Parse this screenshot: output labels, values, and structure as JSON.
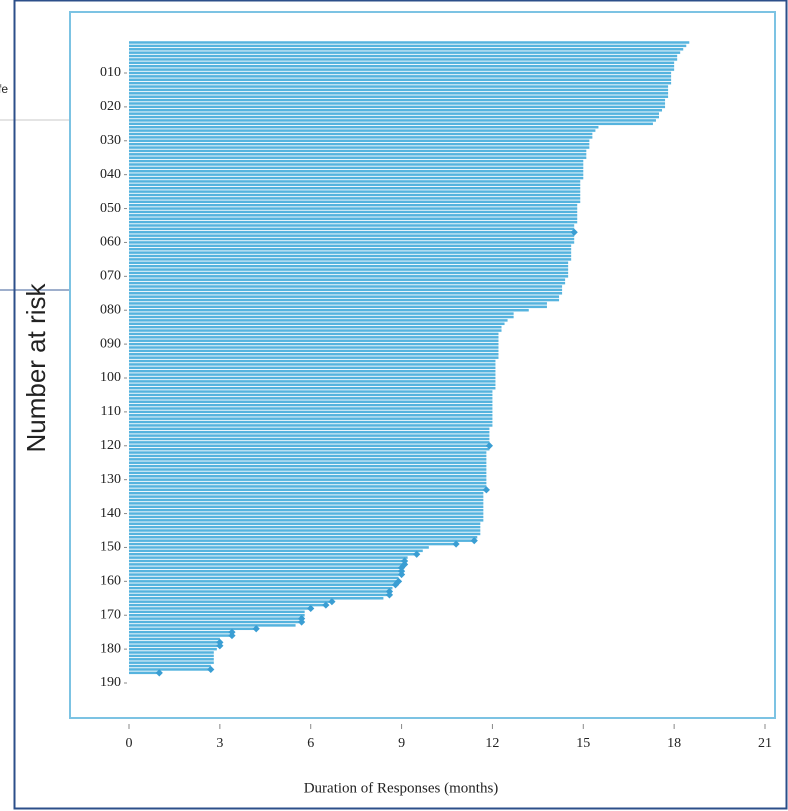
{
  "chart_data": {
    "type": "swimmer",
    "xlabel": "Duration of Responses (months)",
    "ylabel": "Number at risk",
    "side_fragment": "fe",
    "color": "#55b3de",
    "marker_color": "#3a9ed3",
    "xlim": [
      0,
      21
    ],
    "xticks": [
      0,
      3,
      6,
      9,
      12,
      15,
      18,
      21
    ],
    "ylim": [
      0,
      195
    ],
    "yticks": [
      {
        "value": 10,
        "label": "010"
      },
      {
        "value": 20,
        "label": "020"
      },
      {
        "value": 30,
        "label": "030"
      },
      {
        "value": 40,
        "label": "040"
      },
      {
        "value": 50,
        "label": "050"
      },
      {
        "value": 60,
        "label": "060"
      },
      {
        "value": 70,
        "label": "070"
      },
      {
        "value": 80,
        "label": "080"
      },
      {
        "value": 90,
        "label": "090"
      },
      {
        "value": 100,
        "label": "100"
      },
      {
        "value": 110,
        "label": "110"
      },
      {
        "value": 120,
        "label": "120"
      },
      {
        "value": 130,
        "label": "130"
      },
      {
        "value": 140,
        "label": "140"
      },
      {
        "value": 150,
        "label": "150"
      },
      {
        "value": 160,
        "label": "160"
      },
      {
        "value": 170,
        "label": "170"
      },
      {
        "value": 180,
        "label": "180"
      },
      {
        "value": 190,
        "label": "190"
      }
    ],
    "values": [
      18.5,
      18.4,
      18.3,
      18.2,
      18.1,
      18.1,
      18.0,
      18.0,
      18.0,
      17.9,
      17.9,
      17.9,
      17.9,
      17.8,
      17.8,
      17.8,
      17.8,
      17.7,
      17.7,
      17.7,
      17.6,
      17.5,
      17.5,
      17.4,
      17.3,
      15.5,
      15.4,
      15.3,
      15.3,
      15.2,
      15.2,
      15.2,
      15.1,
      15.1,
      15.1,
      15.0,
      15.0,
      15.0,
      15.0,
      15.0,
      15.0,
      14.9,
      14.9,
      14.9,
      14.9,
      14.9,
      14.9,
      14.9,
      14.8,
      14.8,
      14.8,
      14.8,
      14.8,
      14.8,
      14.7,
      14.7,
      14.7,
      14.7,
      14.7,
      14.7,
      14.6,
      14.6,
      14.6,
      14.6,
      14.6,
      14.5,
      14.5,
      14.5,
      14.5,
      14.5,
      14.4,
      14.4,
      14.3,
      14.3,
      14.3,
      14.2,
      14.2,
      13.8,
      13.8,
      13.2,
      12.7,
      12.7,
      12.5,
      12.4,
      12.3,
      12.3,
      12.2,
      12.2,
      12.2,
      12.2,
      12.2,
      12.2,
      12.2,
      12.2,
      12.1,
      12.1,
      12.1,
      12.1,
      12.1,
      12.1,
      12.1,
      12.1,
      12.1,
      12.0,
      12.0,
      12.0,
      12.0,
      12.0,
      12.0,
      12.0,
      12.0,
      12.0,
      12.0,
      12.0,
      11.9,
      11.9,
      11.9,
      11.9,
      11.9,
      11.9,
      11.9,
      11.8,
      11.8,
      11.8,
      11.8,
      11.8,
      11.8,
      11.8,
      11.8,
      11.8,
      11.8,
      11.8,
      11.8,
      11.7,
      11.7,
      11.7,
      11.7,
      11.7,
      11.7,
      11.7,
      11.7,
      11.7,
      11.6,
      11.6,
      11.6,
      11.6,
      11.5,
      11.4,
      10.8,
      9.9,
      9.7,
      9.5,
      9.2,
      9.1,
      9.1,
      9.0,
      9.0,
      9.0,
      8.9,
      8.9,
      8.8,
      8.7,
      8.6,
      8.6,
      8.4,
      6.7,
      6.5,
      6.0,
      5.8,
      5.8,
      5.7,
      5.7,
      5.5,
      4.2,
      3.4,
      3.4,
      3.0,
      3.0,
      3.0,
      2.9,
      2.8,
      2.8,
      2.8,
      2.8,
      2.7,
      2.7,
      1.0
    ],
    "ongoing": [
      57,
      120,
      133,
      148,
      149,
      152,
      154,
      155,
      156,
      157,
      158,
      160,
      161,
      163,
      164,
      166,
      167,
      168,
      171,
      172,
      174,
      175,
      176,
      178,
      179,
      186,
      187
    ]
  }
}
